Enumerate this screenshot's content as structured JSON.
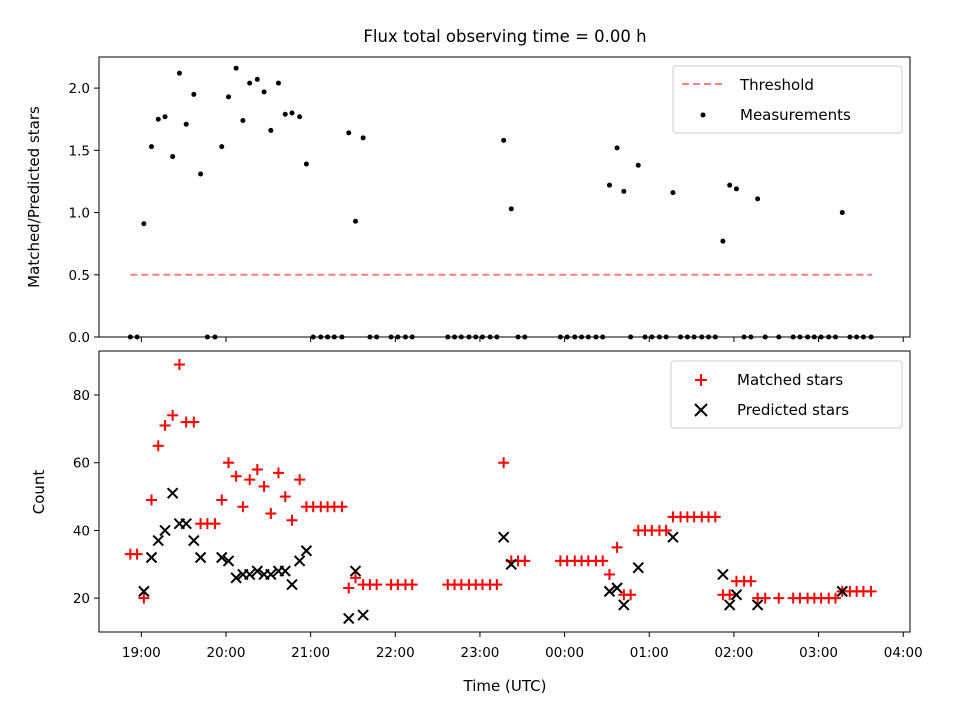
{
  "chart_data": [
    {
      "type": "scatter",
      "title": "Flux total observing time = 0.00 h",
      "xlabel": "",
      "ylabel": "Matched/Predicted stars",
      "xlim": [
        18.5,
        28.08
      ],
      "ylim": [
        0,
        2.25
      ],
      "yticks": [
        0.0,
        0.5,
        1.0,
        1.5,
        2.0
      ],
      "ytick_labels": [
        "0.0",
        "0.5",
        "1.0",
        "1.5",
        "2.0"
      ],
      "legend_position": "top-right",
      "threshold": {
        "name": "Threshold",
        "value": 0.5,
        "x_range": [
          18.87,
          27.63
        ],
        "color": "#ff7f7f",
        "style": "dashed"
      },
      "series": [
        {
          "name": "Measurements",
          "color": "#000000",
          "marker": "dot",
          "points": [
            [
              18.87,
              0
            ],
            [
              18.95,
              0
            ],
            [
              19.03,
              0.91
            ],
            [
              19.12,
              1.53
            ],
            [
              19.2,
              1.75
            ],
            [
              19.28,
              1.77
            ],
            [
              19.37,
              1.45
            ],
            [
              19.45,
              2.12
            ],
            [
              19.53,
              1.71
            ],
            [
              19.62,
              1.95
            ],
            [
              19.7,
              1.31
            ],
            [
              19.78,
              0
            ],
            [
              19.87,
              0
            ],
            [
              19.95,
              1.53
            ],
            [
              20.03,
              1.93
            ],
            [
              20.12,
              2.16
            ],
            [
              20.2,
              1.74
            ],
            [
              20.28,
              2.04
            ],
            [
              20.37,
              2.07
            ],
            [
              20.45,
              1.97
            ],
            [
              20.53,
              1.66
            ],
            [
              20.62,
              2.04
            ],
            [
              20.7,
              1.79
            ],
            [
              20.78,
              1.8
            ],
            [
              20.87,
              1.77
            ],
            [
              20.95,
              1.39
            ],
            [
              21.03,
              0
            ],
            [
              21.12,
              0
            ],
            [
              21.2,
              0
            ],
            [
              21.28,
              0
            ],
            [
              21.37,
              0
            ],
            [
              21.45,
              1.64
            ],
            [
              21.53,
              0.93
            ],
            [
              21.62,
              1.6
            ],
            [
              21.7,
              0
            ],
            [
              21.78,
              0
            ],
            [
              21.95,
              0
            ],
            [
              22.03,
              0
            ],
            [
              22.12,
              0
            ],
            [
              22.2,
              0
            ],
            [
              22.62,
              0
            ],
            [
              22.7,
              0
            ],
            [
              22.78,
              0
            ],
            [
              22.87,
              0
            ],
            [
              22.95,
              0
            ],
            [
              23.03,
              0
            ],
            [
              23.12,
              0
            ],
            [
              23.2,
              0
            ],
            [
              23.28,
              1.58
            ],
            [
              23.37,
              1.03
            ],
            [
              23.45,
              0
            ],
            [
              23.53,
              0
            ],
            [
              23.95,
              0
            ],
            [
              24.03,
              0
            ],
            [
              24.12,
              0
            ],
            [
              24.2,
              0
            ],
            [
              24.28,
              0
            ],
            [
              24.37,
              0
            ],
            [
              24.45,
              0
            ],
            [
              24.53,
              1.22
            ],
            [
              24.62,
              1.52
            ],
            [
              24.7,
              1.17
            ],
            [
              24.78,
              0
            ],
            [
              24.87,
              1.38
            ],
            [
              24.95,
              0
            ],
            [
              25.03,
              0
            ],
            [
              25.12,
              0
            ],
            [
              25.2,
              0
            ],
            [
              25.28,
              1.16
            ],
            [
              25.37,
              0
            ],
            [
              25.45,
              0
            ],
            [
              25.53,
              0
            ],
            [
              25.62,
              0
            ],
            [
              25.7,
              0
            ],
            [
              25.78,
              0
            ],
            [
              25.87,
              0.77
            ],
            [
              25.95,
              1.22
            ],
            [
              26.03,
              1.19
            ],
            [
              26.12,
              0
            ],
            [
              26.2,
              0
            ],
            [
              26.28,
              1.11
            ],
            [
              26.37,
              0
            ],
            [
              26.53,
              0
            ],
            [
              26.7,
              0
            ],
            [
              26.78,
              0
            ],
            [
              26.87,
              0
            ],
            [
              26.95,
              0
            ],
            [
              27.03,
              0
            ],
            [
              27.12,
              0
            ],
            [
              27.2,
              0
            ],
            [
              27.28,
              1.0
            ],
            [
              27.37,
              0
            ],
            [
              27.45,
              0
            ],
            [
              27.53,
              0
            ],
            [
              27.62,
              0
            ]
          ]
        }
      ]
    },
    {
      "type": "scatter",
      "title": "",
      "xlabel": "Time (UTC)",
      "ylabel": "Count",
      "xlim": [
        18.5,
        28.08
      ],
      "ylim": [
        10,
        93
      ],
      "xticks": [
        19,
        20,
        21,
        22,
        23,
        24,
        25,
        26,
        27,
        28
      ],
      "xtick_labels": [
        "19:00",
        "20:00",
        "21:00",
        "22:00",
        "23:00",
        "00:00",
        "01:00",
        "02:00",
        "03:00",
        "04:00"
      ],
      "yticks": [
        20,
        40,
        60,
        80
      ],
      "ytick_labels": [
        "20",
        "40",
        "60",
        "80"
      ],
      "legend_position": "top-right",
      "series": [
        {
          "name": "Matched stars",
          "color": "#ff0000",
          "marker": "plus",
          "points": [
            [
              18.87,
              33
            ],
            [
              18.95,
              33
            ],
            [
              19.03,
              20
            ],
            [
              19.12,
              49
            ],
            [
              19.2,
              65
            ],
            [
              19.28,
              71
            ],
            [
              19.37,
              74
            ],
            [
              19.45,
              89
            ],
            [
              19.53,
              72
            ],
            [
              19.62,
              72
            ],
            [
              19.7,
              42
            ],
            [
              19.78,
              42
            ],
            [
              19.87,
              42
            ],
            [
              19.95,
              49
            ],
            [
              20.03,
              60
            ],
            [
              20.12,
              56
            ],
            [
              20.2,
              47
            ],
            [
              20.28,
              55
            ],
            [
              20.37,
              58
            ],
            [
              20.45,
              53
            ],
            [
              20.53,
              45
            ],
            [
              20.62,
              57
            ],
            [
              20.7,
              50
            ],
            [
              20.78,
              43
            ],
            [
              20.87,
              55
            ],
            [
              20.95,
              47
            ],
            [
              21.03,
              47
            ],
            [
              21.12,
              47
            ],
            [
              21.2,
              47
            ],
            [
              21.28,
              47
            ],
            [
              21.37,
              47
            ],
            [
              21.45,
              23
            ],
            [
              21.53,
              26
            ],
            [
              21.62,
              24
            ],
            [
              21.7,
              24
            ],
            [
              21.78,
              24
            ],
            [
              21.95,
              24
            ],
            [
              22.03,
              24
            ],
            [
              22.12,
              24
            ],
            [
              22.2,
              24
            ],
            [
              22.62,
              24
            ],
            [
              22.7,
              24
            ],
            [
              22.78,
              24
            ],
            [
              22.87,
              24
            ],
            [
              22.95,
              24
            ],
            [
              23.03,
              24
            ],
            [
              23.12,
              24
            ],
            [
              23.2,
              24
            ],
            [
              23.28,
              60
            ],
            [
              23.37,
              31
            ],
            [
              23.45,
              31
            ],
            [
              23.53,
              31
            ],
            [
              23.95,
              31
            ],
            [
              24.03,
              31
            ],
            [
              24.12,
              31
            ],
            [
              24.2,
              31
            ],
            [
              24.28,
              31
            ],
            [
              24.37,
              31
            ],
            [
              24.45,
              31
            ],
            [
              24.53,
              27
            ],
            [
              24.62,
              35
            ],
            [
              24.7,
              21
            ],
            [
              24.78,
              21
            ],
            [
              24.87,
              40
            ],
            [
              24.95,
              40
            ],
            [
              25.03,
              40
            ],
            [
              25.12,
              40
            ],
            [
              25.2,
              40
            ],
            [
              25.28,
              44
            ],
            [
              25.37,
              44
            ],
            [
              25.45,
              44
            ],
            [
              25.53,
              44
            ],
            [
              25.62,
              44
            ],
            [
              25.7,
              44
            ],
            [
              25.78,
              44
            ],
            [
              25.87,
              21
            ],
            [
              25.95,
              21
            ],
            [
              26.03,
              25
            ],
            [
              26.12,
              25
            ],
            [
              26.2,
              25
            ],
            [
              26.28,
              20
            ],
            [
              26.37,
              20
            ],
            [
              26.53,
              20
            ],
            [
              26.7,
              20
            ],
            [
              26.78,
              20
            ],
            [
              26.87,
              20
            ],
            [
              26.95,
              20
            ],
            [
              27.03,
              20
            ],
            [
              27.12,
              20
            ],
            [
              27.2,
              20
            ],
            [
              27.28,
              22
            ],
            [
              27.37,
              22
            ],
            [
              27.45,
              22
            ],
            [
              27.53,
              22
            ],
            [
              27.62,
              22
            ]
          ]
        },
        {
          "name": "Predicted stars",
          "color": "#000000",
          "marker": "x",
          "points": [
            [
              19.03,
              22
            ],
            [
              19.12,
              32
            ],
            [
              19.2,
              37
            ],
            [
              19.28,
              40
            ],
            [
              19.37,
              51
            ],
            [
              19.45,
              42
            ],
            [
              19.53,
              42
            ],
            [
              19.62,
              37
            ],
            [
              19.7,
              32
            ],
            [
              19.95,
              32
            ],
            [
              20.03,
              31
            ],
            [
              20.12,
              26
            ],
            [
              20.2,
              27
            ],
            [
              20.28,
              27
            ],
            [
              20.37,
              28
            ],
            [
              20.45,
              27
            ],
            [
              20.53,
              27
            ],
            [
              20.62,
              28
            ],
            [
              20.7,
              28
            ],
            [
              20.78,
              24
            ],
            [
              20.87,
              31
            ],
            [
              20.95,
              34
            ],
            [
              21.45,
              14
            ],
            [
              21.53,
              28
            ],
            [
              21.62,
              15
            ],
            [
              23.28,
              38
            ],
            [
              23.37,
              30
            ],
            [
              24.53,
              22
            ],
            [
              24.62,
              23
            ],
            [
              24.7,
              18
            ],
            [
              24.87,
              29
            ],
            [
              25.28,
              38
            ],
            [
              25.87,
              27
            ],
            [
              25.95,
              18
            ],
            [
              26.03,
              21
            ],
            [
              26.28,
              18
            ],
            [
              27.28,
              22
            ]
          ]
        }
      ]
    }
  ]
}
